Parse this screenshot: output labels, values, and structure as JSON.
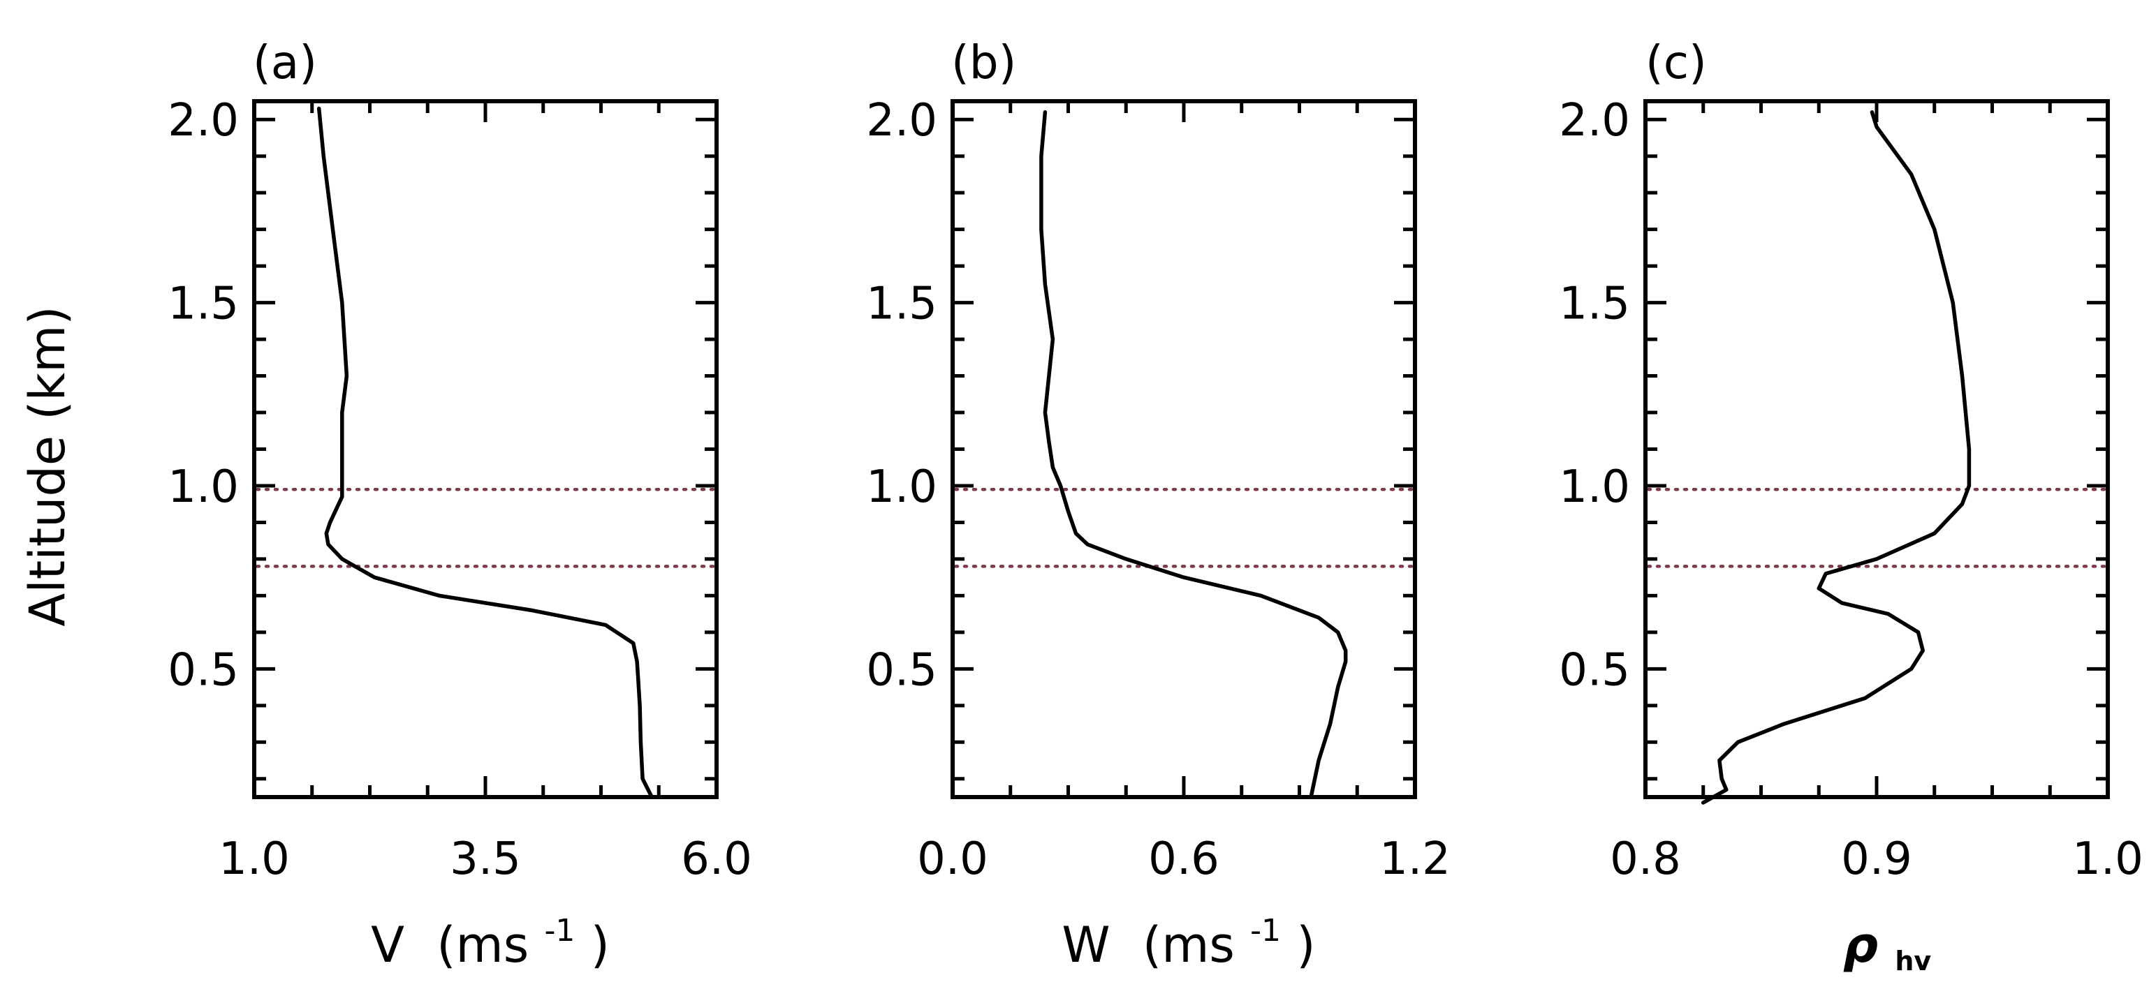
{
  "chart_data": [
    {
      "type": "line",
      "panel_label": "(a)",
      "title": "",
      "xlabel": "V (ms⁻¹)",
      "xlabel_main": "V",
      "xlabel_unit": "(ms",
      "xlabel_sup": "-1",
      "xlabel_close": ")",
      "ylabel": "Altitude (km)",
      "xlim": [
        1.0,
        6.0
      ],
      "ylim": [
        0.15,
        2.05
      ],
      "xticks": [
        1.0,
        3.5,
        6.0
      ],
      "xtick_labels": [
        "1.0",
        "3.5",
        "6.0"
      ],
      "xminor": [
        1.625,
        2.25,
        2.875,
        4.125,
        4.75,
        5.375
      ],
      "yticks": [
        0.5,
        1.0,
        1.5,
        2.0
      ],
      "ytick_labels": [
        "0.5",
        "1.0",
        "1.5",
        "2.0"
      ],
      "reference_lines": [
        0.99,
        0.78
      ],
      "series": [
        {
          "name": "V",
          "x": [
            5.3,
            5.2,
            5.18,
            5.17,
            5.15,
            5.14,
            5.1,
            4.8,
            4.0,
            3.0,
            2.3,
            1.95,
            1.8,
            1.78,
            1.82,
            1.95,
            1.95,
            1.95,
            2.0,
            1.95,
            1.85,
            1.75,
            1.7
          ],
          "y": [
            0.15,
            0.2,
            0.3,
            0.4,
            0.48,
            0.52,
            0.57,
            0.62,
            0.66,
            0.7,
            0.75,
            0.8,
            0.84,
            0.87,
            0.9,
            0.97,
            1.1,
            1.2,
            1.3,
            1.5,
            1.7,
            1.9,
            2.03
          ]
        }
      ]
    },
    {
      "type": "line",
      "panel_label": "(b)",
      "title": "",
      "xlabel": "W (ms⁻¹)",
      "xlabel_main": "W",
      "xlabel_unit": "(ms",
      "xlabel_sup": "-1",
      "xlabel_close": ")",
      "ylabel": "",
      "xlim": [
        0.0,
        1.2
      ],
      "ylim": [
        0.15,
        2.05
      ],
      "xticks": [
        0.0,
        0.6,
        1.2
      ],
      "xtick_labels": [
        "0.0",
        "0.6",
        "1.2"
      ],
      "xminor": [
        0.15,
        0.3,
        0.45,
        0.75,
        0.9,
        1.05
      ],
      "yticks": [
        0.5,
        1.0,
        1.5,
        2.0
      ],
      "ytick_labels": [
        "0.5",
        "1.0",
        "1.5",
        "2.0"
      ],
      "reference_lines": [
        0.99,
        0.78
      ],
      "series": [
        {
          "name": "W",
          "x": [
            0.93,
            0.95,
            0.98,
            1.0,
            1.02,
            1.02,
            1.0,
            0.95,
            0.8,
            0.6,
            0.45,
            0.35,
            0.32,
            0.3,
            0.28,
            0.26,
            0.25,
            0.24,
            0.25,
            0.26,
            0.24,
            0.23,
            0.23,
            0.24
          ],
          "y": [
            0.15,
            0.25,
            0.35,
            0.45,
            0.52,
            0.55,
            0.6,
            0.64,
            0.7,
            0.75,
            0.8,
            0.84,
            0.87,
            0.93,
            1.0,
            1.05,
            1.12,
            1.2,
            1.3,
            1.4,
            1.55,
            1.7,
            1.9,
            2.02
          ]
        }
      ]
    },
    {
      "type": "line",
      "panel_label": "(c)",
      "title": "",
      "xlabel": "ρhv",
      "xlabel_main": "ρ",
      "xlabel_sub": "hv",
      "ylabel": "",
      "xlim": [
        0.8,
        1.0
      ],
      "ylim": [
        0.15,
        2.05
      ],
      "xticks": [
        0.8,
        0.9,
        1.0
      ],
      "xtick_labels": [
        "0.8",
        "0.9",
        "1.0"
      ],
      "xminor": [
        0.825,
        0.85,
        0.875,
        0.925,
        0.95,
        0.975
      ],
      "yticks": [
        0.5,
        1.0,
        1.5,
        2.0
      ],
      "ytick_labels": [
        "0.5",
        "1.0",
        "1.5",
        "2.0"
      ],
      "reference_lines": [
        0.99,
        0.78
      ],
      "series": [
        {
          "name": "rho_hv",
          "x": [
            0.825,
            0.835,
            0.833,
            0.832,
            0.84,
            0.86,
            0.895,
            0.915,
            0.92,
            0.918,
            0.905,
            0.885,
            0.875,
            0.878,
            0.9,
            0.925,
            0.937,
            0.94,
            0.94,
            0.937,
            0.933,
            0.925,
            0.915,
            0.9,
            0.898
          ],
          "y": [
            0.13,
            0.17,
            0.2,
            0.25,
            0.3,
            0.35,
            0.42,
            0.5,
            0.55,
            0.6,
            0.65,
            0.68,
            0.72,
            0.76,
            0.8,
            0.87,
            0.95,
            1.0,
            1.1,
            1.3,
            1.5,
            1.7,
            1.85,
            1.98,
            2.02
          ]
        }
      ]
    }
  ]
}
